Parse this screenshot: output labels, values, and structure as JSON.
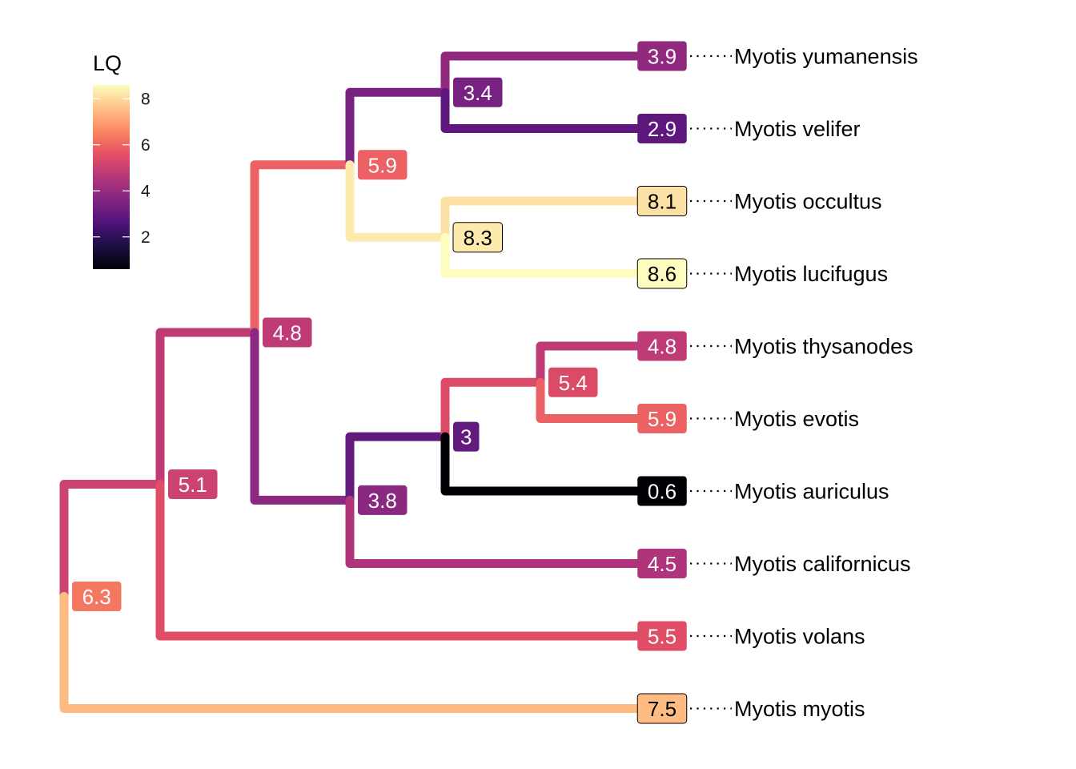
{
  "legend": {
    "title": "LQ",
    "ticks": [
      2,
      4,
      6,
      8
    ],
    "min": 0.6,
    "max": 8.6,
    "stops": [
      "#000004",
      "#1c1044",
      "#4f127b",
      "#812581",
      "#b5367a",
      "#e55064",
      "#fb8761",
      "#fec287",
      "#fcfdbf"
    ]
  },
  "tree": {
    "tips": [
      {
        "id": "yumanensis",
        "name": "Myotis yumanensis",
        "value": 3.9
      },
      {
        "id": "velifer",
        "name": "Myotis velifer",
        "value": 2.9
      },
      {
        "id": "occultus",
        "name": "Myotis occultus",
        "value": 8.1
      },
      {
        "id": "lucifugus",
        "name": "Myotis lucifugus",
        "value": 8.6
      },
      {
        "id": "thysanodes",
        "name": "Myotis thysanodes",
        "value": 4.8
      },
      {
        "id": "evotis",
        "name": "Myotis evotis",
        "value": 5.9
      },
      {
        "id": "auriculus",
        "name": "Myotis auriculus",
        "value": 0.6
      },
      {
        "id": "californicus",
        "name": "Myotis californicus",
        "value": 4.5
      },
      {
        "id": "volans",
        "name": "Myotis volans",
        "value": 5.5
      },
      {
        "id": "myotis",
        "name": "Myotis myotis",
        "value": 7.5
      }
    ],
    "nodes": [
      {
        "id": "root",
        "value": 6.3,
        "children": [
          "n51",
          "myotis"
        ]
      },
      {
        "id": "n51",
        "value": 5.1,
        "children": [
          "n48",
          "volans"
        ]
      },
      {
        "id": "n48",
        "value": 4.8,
        "children": [
          "n59",
          "n38"
        ]
      },
      {
        "id": "n59",
        "value": 5.9,
        "children": [
          "n34",
          "n83"
        ]
      },
      {
        "id": "n34",
        "value": 3.4,
        "children": [
          "yumanensis",
          "velifer"
        ]
      },
      {
        "id": "n83",
        "value": 8.3,
        "children": [
          "occultus",
          "lucifugus"
        ]
      },
      {
        "id": "n38",
        "value": 3.8,
        "children": [
          "n3",
          "californicus"
        ]
      },
      {
        "id": "n3",
        "value": 3,
        "children": [
          "n54",
          "auriculus"
        ]
      },
      {
        "id": "n54",
        "value": 5.4,
        "children": [
          "thysanodes",
          "evotis"
        ]
      }
    ]
  }
}
